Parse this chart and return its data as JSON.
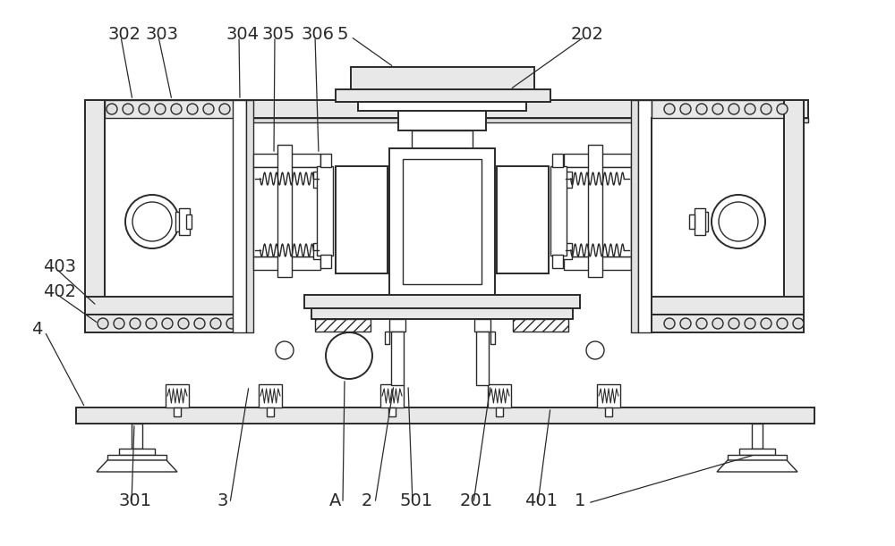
{
  "bg_color": "#ffffff",
  "line_color": "#2a2a2a",
  "lw": 1.0,
  "lw2": 1.4,
  "fig_width": 10.0,
  "fig_height": 6.11,
  "label_fontsize": 14,
  "labels_top": [
    [
      "302",
      127,
      38
    ],
    [
      "303",
      168,
      38
    ],
    [
      "304",
      258,
      38
    ],
    [
      "305",
      298,
      38
    ],
    [
      "306",
      343,
      38
    ],
    [
      "5",
      383,
      38
    ],
    [
      "202",
      643,
      38
    ]
  ],
  "labels_left": [
    [
      "403",
      55,
      298
    ],
    [
      "402",
      55,
      326
    ],
    [
      "4",
      42,
      368
    ]
  ],
  "labels_bottom": [
    [
      "301",
      138,
      558
    ],
    [
      "3",
      248,
      558
    ],
    [
      "A",
      374,
      558
    ],
    [
      "2",
      410,
      558
    ],
    [
      "501",
      452,
      558
    ],
    [
      "201",
      520,
      558
    ],
    [
      "401",
      592,
      558
    ],
    [
      "1",
      648,
      558
    ]
  ]
}
